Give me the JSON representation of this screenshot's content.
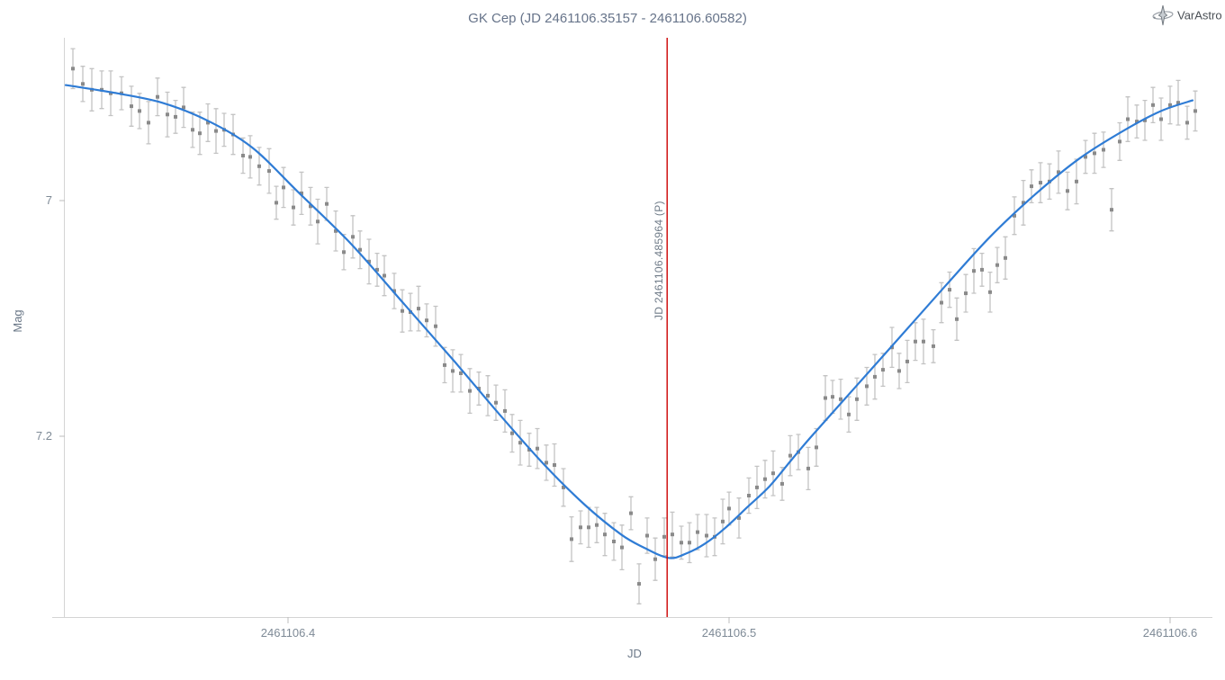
{
  "header": {
    "title": "GK Cep (JD 2461106.35157 - 2461106.60582)"
  },
  "logo": {
    "text": "VarAstro",
    "icon": "star-sparkle-icon"
  },
  "chart_data": {
    "type": "scatter",
    "title": "GK Cep (JD 2461106.35157 - 2461106.60582)",
    "xlabel": "JD",
    "ylabel": "Mag",
    "grid": false,
    "y_axis_inverted": true,
    "xlim": [
      2461106.349388,
      2461106.609592
    ],
    "ylim": [
      6.8618,
      7.3542
    ],
    "x_ticks": [
      2461106.4,
      2461106.5,
      2461106.6
    ],
    "x_tick_labels": [
      "2461106.4",
      "2461106.5",
      "2461106.6"
    ],
    "y_ticks": [
      7,
      7.2
    ],
    "y_tick_labels": [
      "7",
      "7.2"
    ],
    "colors": {
      "marker": "#8a8a8a",
      "errorbar": "#c3c3c3",
      "curve": "#2f7cd5",
      "minimum_line": "#cc0000",
      "axis_line": "#d4d4d4",
      "tick_mark": "#bcbcbc"
    },
    "minimum_line": {
      "jd": 2461106.485964,
      "label": "JD 2461106.485964 (P)"
    },
    "series": [
      {
        "name": "observations",
        "type": "scatter_errorbars",
        "points": [
          [
            2461106.35122,
            6.888,
            0.017
          ],
          [
            2461106.35347,
            6.901,
            0.015
          ],
          [
            2461106.35551,
            6.906,
            0.018
          ],
          [
            2461106.35776,
            6.906,
            0.016
          ],
          [
            2461106.3598,
            6.909,
            0.019
          ],
          [
            2461106.36224,
            6.909,
            0.014
          ],
          [
            2461106.36449,
            6.92,
            0.017
          ],
          [
            2461106.36633,
            6.924,
            0.015
          ],
          [
            2461106.36837,
            6.934,
            0.018
          ],
          [
            2461106.37041,
            6.912,
            0.016
          ],
          [
            2461106.37265,
            6.927,
            0.019
          ],
          [
            2461106.37449,
            6.929,
            0.014
          ],
          [
            2461106.37633,
            6.921,
            0.017
          ],
          [
            2461106.37837,
            6.94,
            0.015
          ],
          [
            2461106.38,
            6.943,
            0.018
          ],
          [
            2461106.38184,
            6.934,
            0.016
          ],
          [
            2461106.38367,
            6.941,
            0.019
          ],
          [
            2461106.38551,
            6.94,
            0.014
          ],
          [
            2461106.38755,
            6.944,
            0.017
          ],
          [
            2461106.3898,
            6.962,
            0.015
          ],
          [
            2461106.39143,
            6.963,
            0.018
          ],
          [
            2461106.39347,
            6.971,
            0.016
          ],
          [
            2461106.39571,
            6.975,
            0.019
          ],
          [
            2461106.39735,
            7.002,
            0.014
          ],
          [
            2461106.39898,
            6.989,
            0.017
          ],
          [
            2461106.40122,
            7.006,
            0.015
          ],
          [
            2461106.40306,
            6.994,
            0.018
          ],
          [
            2461106.4051,
            7.005,
            0.016
          ],
          [
            2461106.40673,
            7.018,
            0.019
          ],
          [
            2461106.40878,
            7.003,
            0.014
          ],
          [
            2461106.41082,
            7.026,
            0.017
          ],
          [
            2461106.41265,
            7.044,
            0.015
          ],
          [
            2461106.41469,
            7.031,
            0.018
          ],
          [
            2461106.41633,
            7.042,
            0.016
          ],
          [
            2461106.41837,
            7.052,
            0.019
          ],
          [
            2461106.4202,
            7.059,
            0.014
          ],
          [
            2461106.42184,
            7.064,
            0.017
          ],
          [
            2461106.42408,
            7.077,
            0.015
          ],
          [
            2461106.42592,
            7.094,
            0.018
          ],
          [
            2461106.42776,
            7.095,
            0.016
          ],
          [
            2461106.4296,
            7.092,
            0.019
          ],
          [
            2461106.43143,
            7.102,
            0.014
          ],
          [
            2461106.43347,
            7.107,
            0.017
          ],
          [
            2461106.43551,
            7.14,
            0.015
          ],
          [
            2461106.43735,
            7.145,
            0.018
          ],
          [
            2461106.43918,
            7.147,
            0.016
          ],
          [
            2461106.44122,
            7.162,
            0.019
          ],
          [
            2461106.44327,
            7.16,
            0.014
          ],
          [
            2461106.44531,
            7.166,
            0.017
          ],
          [
            2461106.44714,
            7.172,
            0.015
          ],
          [
            2461106.44918,
            7.179,
            0.018
          ],
          [
            2461106.45082,
            7.198,
            0.016
          ],
          [
            2461106.45265,
            7.206,
            0.019
          ],
          [
            2461106.45469,
            7.212,
            0.014
          ],
          [
            2461106.45653,
            7.211,
            0.017
          ],
          [
            2461106.45857,
            7.223,
            0.015
          ],
          [
            2461106.46041,
            7.225,
            0.018
          ],
          [
            2461106.46245,
            7.244,
            0.016
          ],
          [
            2461106.46429,
            7.288,
            0.019
          ],
          [
            2461106.46633,
            7.278,
            0.014
          ],
          [
            2461106.46816,
            7.278,
            0.017
          ],
          [
            2461106.47,
            7.276,
            0.015
          ],
          [
            2461106.47184,
            7.284,
            0.018
          ],
          [
            2461106.47388,
            7.29,
            0.016
          ],
          [
            2461106.47571,
            7.295,
            0.019
          ],
          [
            2461106.47776,
            7.266,
            0.014
          ],
          [
            2461106.47959,
            7.326,
            0.017
          ],
          [
            2461106.48143,
            7.285,
            0.015
          ],
          [
            2461106.48327,
            7.305,
            0.018
          ],
          [
            2461106.48531,
            7.286,
            0.016
          ],
          [
            2461106.48714,
            7.284,
            0.019
          ],
          [
            2461106.48918,
            7.291,
            0.014
          ],
          [
            2461106.49102,
            7.291,
            0.017
          ],
          [
            2461106.49286,
            7.282,
            0.015
          ],
          [
            2461106.4949,
            7.285,
            0.018
          ],
          [
            2461106.49673,
            7.286,
            0.016
          ],
          [
            2461106.49857,
            7.273,
            0.019
          ],
          [
            2461106.5,
            7.262,
            0.014
          ],
          [
            2461106.50224,
            7.27,
            0.017
          ],
          [
            2461106.50449,
            7.251,
            0.015
          ],
          [
            2461106.50633,
            7.244,
            0.018
          ],
          [
            2461106.50816,
            7.237,
            0.016
          ],
          [
            2461106.51,
            7.232,
            0.019
          ],
          [
            2461106.51204,
            7.241,
            0.014
          ],
          [
            2461106.51388,
            7.217,
            0.017
          ],
          [
            2461106.51571,
            7.214,
            0.015
          ],
          [
            2461106.51796,
            7.228,
            0.018
          ],
          [
            2461106.5198,
            7.21,
            0.016
          ],
          [
            2461106.52184,
            7.168,
            0.019
          ],
          [
            2461106.52347,
            7.167,
            0.014
          ],
          [
            2461106.52531,
            7.169,
            0.017
          ],
          [
            2461106.52714,
            7.182,
            0.015
          ],
          [
            2461106.52898,
            7.169,
            0.018
          ],
          [
            2461106.53122,
            7.158,
            0.016
          ],
          [
            2461106.53306,
            7.15,
            0.019
          ],
          [
            2461106.5349,
            7.144,
            0.014
          ],
          [
            2461106.53694,
            7.125,
            0.017
          ],
          [
            2461106.53857,
            7.145,
            0.015
          ],
          [
            2461106.54041,
            7.137,
            0.018
          ],
          [
            2461106.54224,
            7.12,
            0.016
          ],
          [
            2461106.54408,
            7.12,
            0.019
          ],
          [
            2461106.54633,
            7.124,
            0.014
          ],
          [
            2461106.54816,
            7.087,
            0.017
          ],
          [
            2461106.55,
            7.076,
            0.015
          ],
          [
            2461106.55163,
            7.101,
            0.018
          ],
          [
            2461106.55367,
            7.079,
            0.016
          ],
          [
            2461106.55551,
            7.06,
            0.019
          ],
          [
            2461106.55735,
            7.059,
            0.014
          ],
          [
            2461106.55918,
            7.078,
            0.017
          ],
          [
            2461106.56082,
            7.055,
            0.015
          ],
          [
            2461106.56265,
            7.049,
            0.018
          ],
          [
            2461106.56469,
            7.013,
            0.016
          ],
          [
            2461106.56673,
            7.002,
            0.019
          ],
          [
            2461106.56857,
            6.988,
            0.014
          ],
          [
            2461106.57061,
            6.985,
            0.017
          ],
          [
            2461106.57265,
            6.984,
            0.015
          ],
          [
            2461106.57469,
            6.976,
            0.018
          ],
          [
            2461106.57673,
            6.992,
            0.016
          ],
          [
            2461106.57878,
            6.984,
            0.019
          ],
          [
            2461106.58082,
            6.963,
            0.014
          ],
          [
            2461106.58286,
            6.96,
            0.017
          ],
          [
            2461106.5849,
            6.957,
            0.015
          ],
          [
            2461106.58673,
            7.008,
            0.018
          ],
          [
            2461106.58857,
            6.95,
            0.016
          ],
          [
            2461106.59041,
            6.931,
            0.019
          ],
          [
            2461106.59245,
            6.933,
            0.014
          ],
          [
            2461106.59429,
            6.932,
            0.017
          ],
          [
            2461106.59612,
            6.919,
            0.015
          ],
          [
            2461106.59796,
            6.931,
            0.018
          ],
          [
            2461106.6,
            6.919,
            0.016
          ],
          [
            2461106.60184,
            6.917,
            0.019
          ],
          [
            2461106.60388,
            6.934,
            0.014
          ],
          [
            2461106.60571,
            6.924,
            0.017
          ]
        ]
      },
      {
        "name": "fit",
        "type": "line",
        "points": [
          [
            2461106.34959,
            6.902
          ],
          [
            2461106.35143,
            6.903
          ],
          [
            2461106.36122,
            6.909
          ],
          [
            2461106.37143,
            6.917
          ],
          [
            2461106.38163,
            6.932
          ],
          [
            2461106.39184,
            6.955
          ],
          [
            2461106.40204,
            6.992
          ],
          [
            2461106.41429,
            7.037
          ],
          [
            2461106.42653,
            7.089
          ],
          [
            2461106.43776,
            7.137
          ],
          [
            2461106.44796,
            7.182
          ],
          [
            2461106.45816,
            7.225
          ],
          [
            2461106.46735,
            7.259
          ],
          [
            2461106.47551,
            7.284
          ],
          [
            2461106.48061,
            7.295
          ],
          [
            2461106.48633,
            7.304
          ],
          [
            2461106.49041,
            7.3
          ],
          [
            2461106.49449,
            7.292
          ],
          [
            2461106.49898,
            7.279
          ],
          [
            2461106.50408,
            7.261
          ],
          [
            2461106.50918,
            7.243
          ],
          [
            2461106.51429,
            7.22
          ],
          [
            2461106.51837,
            7.202
          ],
          [
            2461106.52857,
            7.159
          ],
          [
            2461106.53878,
            7.116
          ],
          [
            2461106.54898,
            7.073
          ],
          [
            2461106.55918,
            7.031
          ],
          [
            2461106.56939,
            6.995
          ],
          [
            2461106.57959,
            6.964
          ],
          [
            2461106.5898,
            6.94
          ],
          [
            2461106.59796,
            6.924
          ],
          [
            2461106.6051,
            6.915
          ]
        ]
      }
    ]
  }
}
